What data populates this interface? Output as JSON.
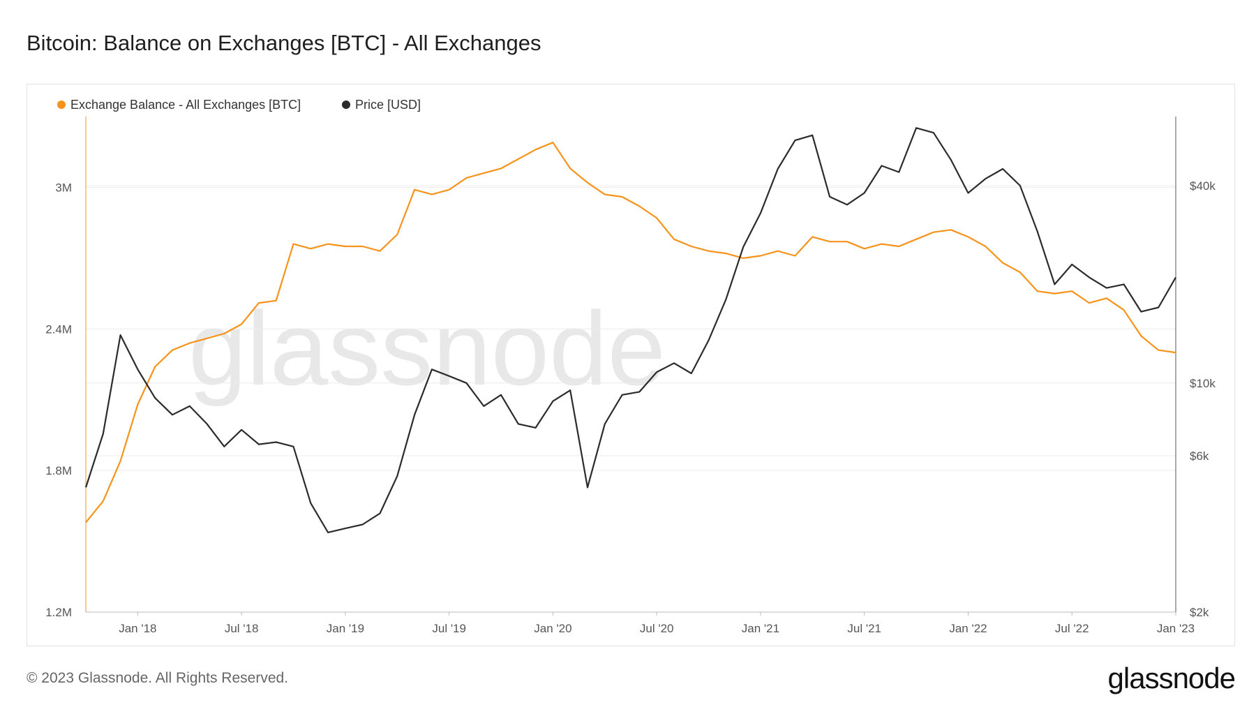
{
  "page": {
    "title": "Bitcoin: Balance on Exchanges [BTC] - All Exchanges",
    "copyright": "© 2023 Glassnode. All Rights Reserved.",
    "logo_text": "glassnode",
    "watermark": "glassnode"
  },
  "colors": {
    "balance": "#f7931a",
    "price": "#2b2b2b",
    "grid": "#ececec",
    "axis": "#bbbbbb"
  },
  "chart_data": {
    "type": "line",
    "title": "Bitcoin: Balance on Exchanges [BTC] - All Exchanges",
    "legend_position": "top-left",
    "grid": true,
    "x_ticks": [
      "Jan '18",
      "Jul '18",
      "Jan '19",
      "Jul '19",
      "Jan '20",
      "Jul '20",
      "Jan '21",
      "Jul '21",
      "Jan '22",
      "Jul '22",
      "Jan '23"
    ],
    "x_tick_dates": [
      "2018-01",
      "2018-07",
      "2019-01",
      "2019-07",
      "2020-01",
      "2020-07",
      "2021-01",
      "2021-07",
      "2022-01",
      "2022-07",
      "2023-01"
    ],
    "x_range": [
      "2017-10",
      "2023-01"
    ],
    "y_left": {
      "label": "",
      "ticks": [
        "1.2M",
        "1.8M",
        "2.4M",
        "3M"
      ],
      "values": [
        1200000,
        1800000,
        2400000,
        3000000
      ],
      "range": [
        1200000,
        3300000
      ]
    },
    "y_right": {
      "label": "",
      "scale": "log",
      "ticks": [
        "$2k",
        "$6k",
        "$10k",
        "$40k"
      ],
      "values": [
        2000,
        6000,
        10000,
        40000
      ],
      "range": [
        2000,
        65000
      ]
    },
    "series": [
      {
        "name": "Exchange Balance - All Exchanges [BTC]",
        "axis": "left",
        "dates": [
          "2017-10",
          "2017-11",
          "2017-12",
          "2018-01",
          "2018-02",
          "2018-03",
          "2018-04",
          "2018-05",
          "2018-06",
          "2018-07",
          "2018-08",
          "2018-09",
          "2018-10",
          "2018-11",
          "2018-12",
          "2019-01",
          "2019-02",
          "2019-03",
          "2019-04",
          "2019-05",
          "2019-06",
          "2019-07",
          "2019-08",
          "2019-09",
          "2019-10",
          "2019-11",
          "2019-12",
          "2020-01",
          "2020-02",
          "2020-03",
          "2020-04",
          "2020-05",
          "2020-06",
          "2020-07",
          "2020-08",
          "2020-09",
          "2020-10",
          "2020-11",
          "2020-12",
          "2021-01",
          "2021-02",
          "2021-03",
          "2021-04",
          "2021-05",
          "2021-06",
          "2021-07",
          "2021-08",
          "2021-09",
          "2021-10",
          "2021-11",
          "2021-12",
          "2022-01",
          "2022-02",
          "2022-03",
          "2022-04",
          "2022-05",
          "2022-06",
          "2022-07",
          "2022-08",
          "2022-09",
          "2022-10",
          "2022-11",
          "2022-12",
          "2023-01"
        ],
        "values": [
          1580000,
          1670000,
          1840000,
          2080000,
          2240000,
          2310000,
          2340000,
          2360000,
          2380000,
          2420000,
          2510000,
          2520000,
          2760000,
          2740000,
          2760000,
          2750000,
          2750000,
          2730000,
          2800000,
          2990000,
          2970000,
          2990000,
          3040000,
          3060000,
          3080000,
          3120000,
          3160000,
          3190000,
          3080000,
          3020000,
          2970000,
          2960000,
          2920000,
          2870000,
          2780000,
          2750000,
          2730000,
          2720000,
          2700000,
          2710000,
          2730000,
          2710000,
          2790000,
          2770000,
          2770000,
          2740000,
          2760000,
          2750000,
          2780000,
          2810000,
          2820000,
          2790000,
          2750000,
          2680000,
          2640000,
          2560000,
          2550000,
          2560000,
          2510000,
          2530000,
          2480000,
          2370000,
          2310000,
          2300000
        ]
      },
      {
        "name": "Price [USD]",
        "axis": "right",
        "dates": [
          "2017-10",
          "2017-11",
          "2017-12",
          "2018-01",
          "2018-02",
          "2018-03",
          "2018-04",
          "2018-05",
          "2018-06",
          "2018-07",
          "2018-08",
          "2018-09",
          "2018-10",
          "2018-11",
          "2018-12",
          "2019-01",
          "2019-02",
          "2019-03",
          "2019-04",
          "2019-05",
          "2019-06",
          "2019-07",
          "2019-08",
          "2019-09",
          "2019-10",
          "2019-11",
          "2019-12",
          "2020-01",
          "2020-02",
          "2020-03",
          "2020-04",
          "2020-05",
          "2020-06",
          "2020-07",
          "2020-08",
          "2020-09",
          "2020-10",
          "2020-11",
          "2020-12",
          "2021-01",
          "2021-02",
          "2021-03",
          "2021-04",
          "2021-05",
          "2021-06",
          "2021-07",
          "2021-08",
          "2021-09",
          "2021-10",
          "2021-11",
          "2021-12",
          "2022-01",
          "2022-02",
          "2022-03",
          "2022-04",
          "2022-05",
          "2022-06",
          "2022-07",
          "2022-08",
          "2022-09",
          "2022-10",
          "2022-11",
          "2022-12",
          "2023-01"
        ],
        "values": [
          4800,
          7000,
          14000,
          11000,
          9000,
          8000,
          8500,
          7500,
          6400,
          7200,
          6500,
          6600,
          6400,
          4300,
          3500,
          3600,
          3700,
          4000,
          5200,
          8000,
          11000,
          10500,
          10000,
          8500,
          9200,
          7500,
          7300,
          8800,
          9500,
          4800,
          7500,
          9200,
          9400,
          10800,
          11500,
          10700,
          13500,
          18000,
          26000,
          33000,
          45000,
          55000,
          57000,
          37000,
          35000,
          38000,
          46000,
          44000,
          60000,
          58000,
          48000,
          38000,
          42000,
          45000,
          40000,
          29000,
          20000,
          23000,
          21000,
          19500,
          20000,
          16500,
          17000,
          21000
        ]
      }
    ]
  }
}
